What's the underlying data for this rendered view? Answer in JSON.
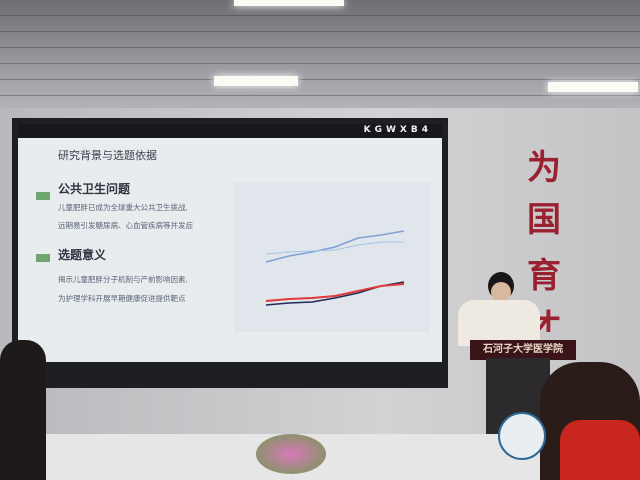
{
  "slide": {
    "brand": "KGWXB4",
    "title": "研究背景与选题依据",
    "sections": [
      {
        "heading": "公共卫生问题",
        "lines": [
          "儿童肥胖已成为全球重大公共卫生挑战,",
          "远期易引发糖尿病、心血管疾病等并发症"
        ]
      },
      {
        "heading": "选题意义",
        "lines": [
          "揭示儿童肥胖分子机制与产前影响因素,",
          "为护理学科开展早期健康促进提供靶点"
        ]
      }
    ],
    "chart_colors": {
      "blue": "#7f9fd6",
      "lightblue": "#9fc6e6",
      "navy": "#1f2a55",
      "red": "#e23a3a"
    }
  },
  "wall_slogan": [
    "为",
    "国",
    "育",
    "才"
  ],
  "podium_label": "石河子大学医学院"
}
